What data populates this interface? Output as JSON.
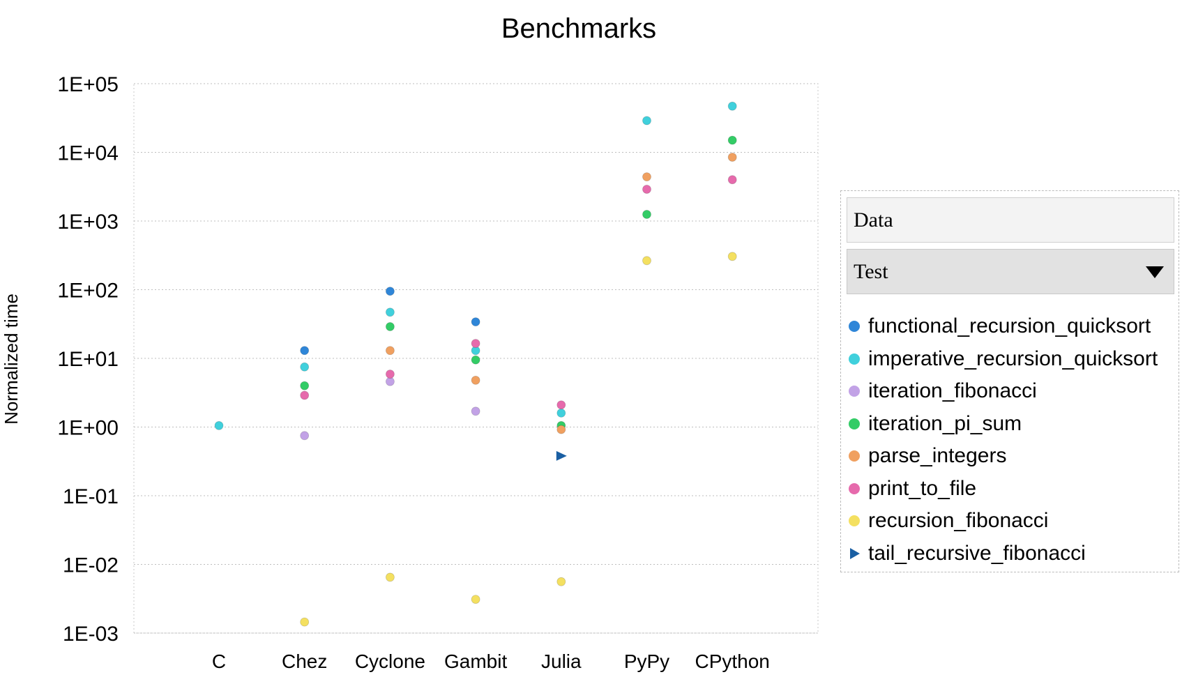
{
  "chart_data": {
    "type": "scatter",
    "title": "Benchmarks",
    "xlabel": "",
    "ylabel": "Normalized time",
    "yscale": "log",
    "ylim": [
      0.001,
      100000
    ],
    "y_tick_labels": [
      "1E+05",
      "1E+04",
      "1E+03",
      "1E+02",
      "1E+01",
      "1E+00",
      "1E-01",
      "1E-02",
      "1E-03"
    ],
    "categories": [
      "C",
      "Chez",
      "Cyclone",
      "Gambit",
      "Julia",
      "PyPy",
      "CPython"
    ],
    "grid": true,
    "legend_position": "right",
    "series": [
      {
        "name": "functional_recursion_quicksort",
        "color": "#2f86d8",
        "marker": "circle",
        "values": [
          null,
          13,
          95,
          34,
          null,
          null,
          null
        ]
      },
      {
        "name": "imperative_recursion_quicksort",
        "color": "#40d0dc",
        "marker": "circle",
        "values": [
          1.05,
          7.5,
          47,
          13,
          1.6,
          29000,
          47000
        ]
      },
      {
        "name": "iteration_fibonacci",
        "color": "#c2a2e6",
        "marker": "circle",
        "values": [
          null,
          0.75,
          4.6,
          1.7,
          null,
          null,
          null
        ]
      },
      {
        "name": "iteration_pi_sum",
        "color": "#33cc66",
        "marker": "circle",
        "values": [
          null,
          4.0,
          29,
          9.5,
          1.05,
          1250,
          15000
        ]
      },
      {
        "name": "parse_integers",
        "color": "#f0a060",
        "marker": "circle",
        "values": [
          null,
          null,
          13,
          4.8,
          0.92,
          4400,
          8500
        ]
      },
      {
        "name": "print_to_file",
        "color": "#e66aac",
        "marker": "circle",
        "values": [
          null,
          2.9,
          5.9,
          16.5,
          2.1,
          2900,
          4000
        ]
      },
      {
        "name": "recursion_fibonacci",
        "color": "#f4e060",
        "marker": "circle",
        "values": [
          null,
          0.00145,
          0.0065,
          0.0031,
          0.0056,
          265,
          305
        ]
      },
      {
        "name": "tail_recursive_fibonacci",
        "color": "#1a5fa3",
        "marker": "triangle",
        "values": [
          null,
          null,
          null,
          null,
          0.38,
          null,
          null
        ]
      }
    ]
  },
  "legend": {
    "data_label": "Data",
    "field_label": "Test"
  }
}
